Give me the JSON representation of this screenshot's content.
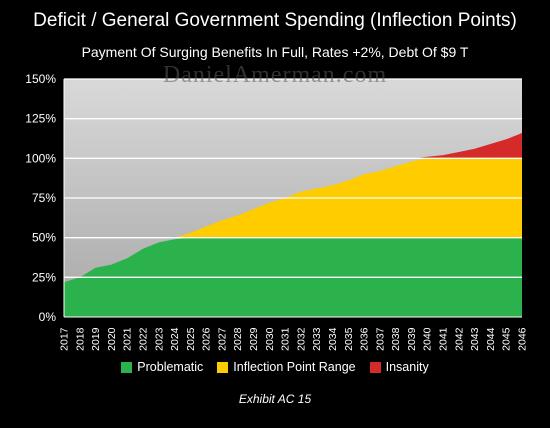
{
  "title": "Deficit / General Government Spending (Inflection Points)",
  "subtitle": "Payment Of Surging Benefits In Full, Rates +2%, Debt Of $9 T",
  "watermark": "DanielAmerman.com",
  "exhibit": "Exhibit AC 15",
  "colors": {
    "background": "#000000",
    "plot_background": "#bfbfbf",
    "problematic": "#2bb24c",
    "inflection": "#ffcc00",
    "insanity": "#d42a2a",
    "gridline": "#ffffff"
  },
  "chart_data": {
    "type": "area",
    "title": "Deficit / General Government Spending (Inflection Points)",
    "subtitle": "Payment Of Surging Benefits In Full, Rates +2%, Debt Of $9 T",
    "x": [
      "2017",
      "2018",
      "2019",
      "2020",
      "2021",
      "2022",
      "2023",
      "2024",
      "2025",
      "2026",
      "2027",
      "2028",
      "2029",
      "2030",
      "2031",
      "2032",
      "2033",
      "2034",
      "2035",
      "2036",
      "2037",
      "2038",
      "2039",
      "2040",
      "2041",
      "2042",
      "2043",
      "2044",
      "2045",
      "2046"
    ],
    "total_values": [
      22,
      25,
      31,
      33,
      37,
      43,
      47,
      49,
      53,
      57,
      61,
      64,
      68,
      72,
      75,
      79,
      81,
      83,
      86,
      90,
      92,
      95,
      98,
      101,
      102,
      104,
      106,
      109,
      112,
      116
    ],
    "series": [
      {
        "name": "Problematic",
        "color": "#2bb24c",
        "band": [
          0,
          50
        ]
      },
      {
        "name": "Inflection Point Range",
        "color": "#ffcc00",
        "band": [
          50,
          100
        ]
      },
      {
        "name": "Insanity",
        "color": "#d42a2a",
        "band": [
          100,
          150
        ]
      }
    ],
    "y_ticks": [
      "0%",
      "25%",
      "50%",
      "75%",
      "100%",
      "125%",
      "150%"
    ],
    "ylim": [
      0,
      150
    ],
    "grid": true,
    "legend_position": "bottom"
  }
}
